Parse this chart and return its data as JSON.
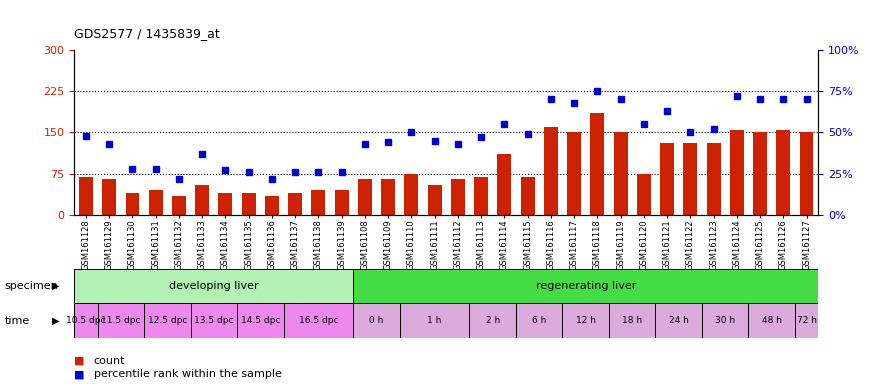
{
  "title": "GDS2577 / 1435839_at",
  "gsm_labels": [
    "GSM161128",
    "GSM161129",
    "GSM161130",
    "GSM161131",
    "GSM161132",
    "GSM161133",
    "GSM161134",
    "GSM161135",
    "GSM161136",
    "GSM161137",
    "GSM161138",
    "GSM161139",
    "GSM161108",
    "GSM161109",
    "GSM161110",
    "GSM161111",
    "GSM161112",
    "GSM161113",
    "GSM161114",
    "GSM161115",
    "GSM161116",
    "GSM161117",
    "GSM161118",
    "GSM161119",
    "GSM161120",
    "GSM161121",
    "GSM161122",
    "GSM161123",
    "GSM161124",
    "GSM161125",
    "GSM161126",
    "GSM161127"
  ],
  "bar_values": [
    70,
    65,
    40,
    45,
    35,
    55,
    40,
    40,
    35,
    40,
    45,
    45,
    65,
    65,
    75,
    55,
    65,
    70,
    110,
    70,
    160,
    150,
    185,
    150,
    75,
    130,
    130,
    130,
    155,
    150,
    155,
    150
  ],
  "dot_values_pct": [
    48,
    43,
    28,
    28,
    22,
    37,
    27,
    26,
    22,
    26,
    26,
    26,
    43,
    44,
    50,
    45,
    43,
    47,
    55,
    49,
    70,
    68,
    75,
    70,
    55,
    63,
    50,
    52,
    72,
    70,
    70,
    70
  ],
  "bar_color": "#cc2200",
  "dot_color": "#0000cc",
  "ylim_left": [
    0,
    300
  ],
  "ylim_right": [
    0,
    100
  ],
  "yticks_left": [
    0,
    75,
    150,
    225,
    300
  ],
  "yticks_right": [
    0,
    25,
    50,
    75,
    100
  ],
  "ytick_labels_right": [
    "0%",
    "25%",
    "50%",
    "75%",
    "100%"
  ],
  "hlines": [
    75,
    150,
    225
  ],
  "specimen_groups": [
    {
      "label": "developing liver",
      "start": 0,
      "end": 12,
      "color": "#b3f0b3"
    },
    {
      "label": "regenerating liver",
      "start": 12,
      "end": 32,
      "color": "#44dd44"
    }
  ],
  "time_groups": [
    {
      "label": "10.5 dpc",
      "start": 0,
      "end": 1,
      "developing": true
    },
    {
      "label": "11.5 dpc",
      "start": 1,
      "end": 3,
      "developing": true
    },
    {
      "label": "12.5 dpc",
      "start": 3,
      "end": 5,
      "developing": true
    },
    {
      "label": "13.5 dpc",
      "start": 5,
      "end": 7,
      "developing": true
    },
    {
      "label": "14.5 dpc",
      "start": 7,
      "end": 9,
      "developing": true
    },
    {
      "label": "16.5 dpc",
      "start": 9,
      "end": 12,
      "developing": true
    },
    {
      "label": "0 h",
      "start": 12,
      "end": 14,
      "developing": false
    },
    {
      "label": "1 h",
      "start": 14,
      "end": 17,
      "developing": false
    },
    {
      "label": "2 h",
      "start": 17,
      "end": 19,
      "developing": false
    },
    {
      "label": "6 h",
      "start": 19,
      "end": 21,
      "developing": false
    },
    {
      "label": "12 h",
      "start": 21,
      "end": 23,
      "developing": false
    },
    {
      "label": "18 h",
      "start": 23,
      "end": 25,
      "developing": false
    },
    {
      "label": "24 h",
      "start": 25,
      "end": 27,
      "developing": false
    },
    {
      "label": "30 h",
      "start": 27,
      "end": 29,
      "developing": false
    },
    {
      "label": "48 h",
      "start": 29,
      "end": 31,
      "developing": false
    },
    {
      "label": "72 h",
      "start": 31,
      "end": 32,
      "developing": false
    }
  ],
  "time_color_developing": "#ee88ee",
  "time_color_regenerating": "#ddaadd",
  "legend_bar_label": "count",
  "legend_dot_label": "percentile rank within the sample",
  "specimen_label": "specimen",
  "time_label": "time"
}
